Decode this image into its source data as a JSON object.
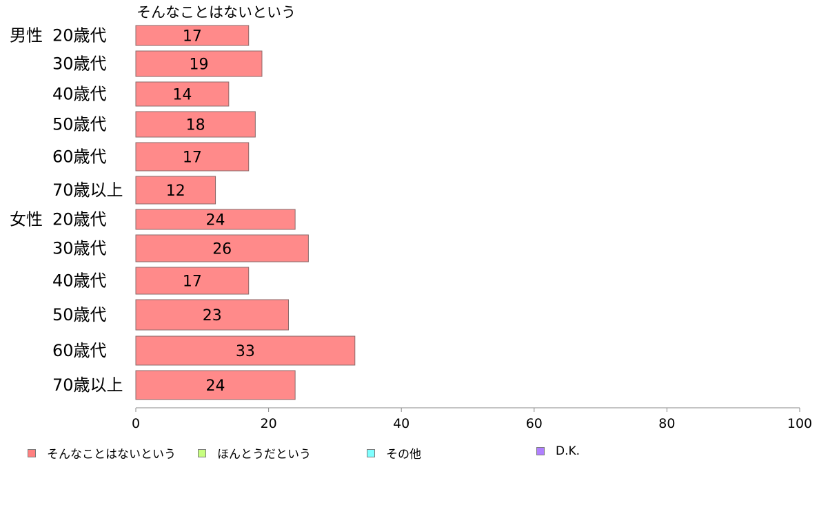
{
  "chart_data": {
    "type": "bar",
    "orientation": "horizontal",
    "title": "",
    "series_label": "そんなことはないという",
    "groups": [
      {
        "label": "男性",
        "rows": [
          {
            "label": "20歳代",
            "value": 17
          },
          {
            "label": "30歳代",
            "value": 19
          },
          {
            "label": "40歳代",
            "value": 14
          },
          {
            "label": "50歳代",
            "value": 18
          },
          {
            "label": "60歳代",
            "value": 17
          },
          {
            "label": "70歳以上",
            "value": 12
          }
        ]
      },
      {
        "label": "女性",
        "rows": [
          {
            "label": "20歳代",
            "value": 24
          },
          {
            "label": "30歳代",
            "value": 26
          },
          {
            "label": "40歳代",
            "value": 17
          },
          {
            "label": "50歳代",
            "value": 23
          },
          {
            "label": "60歳代",
            "value": 33
          },
          {
            "label": "70歳以上",
            "value": 24
          }
        ]
      }
    ],
    "xlim": [
      0,
      100
    ],
    "xticks": [
      0,
      20,
      40,
      60,
      80,
      100
    ],
    "grid": false,
    "bar_color": "#ff8a8a",
    "bar_edge_color": "#8a6a6a",
    "legend_position": "bottom",
    "legend": [
      {
        "name": "そんなことはないという",
        "color": "#ff8080"
      },
      {
        "name": "ほんとうだという",
        "color": "#c8ff80"
      },
      {
        "name": "その他",
        "color": "#80ffff"
      },
      {
        "name": "D.K.",
        "color": "#b080ff"
      }
    ]
  }
}
